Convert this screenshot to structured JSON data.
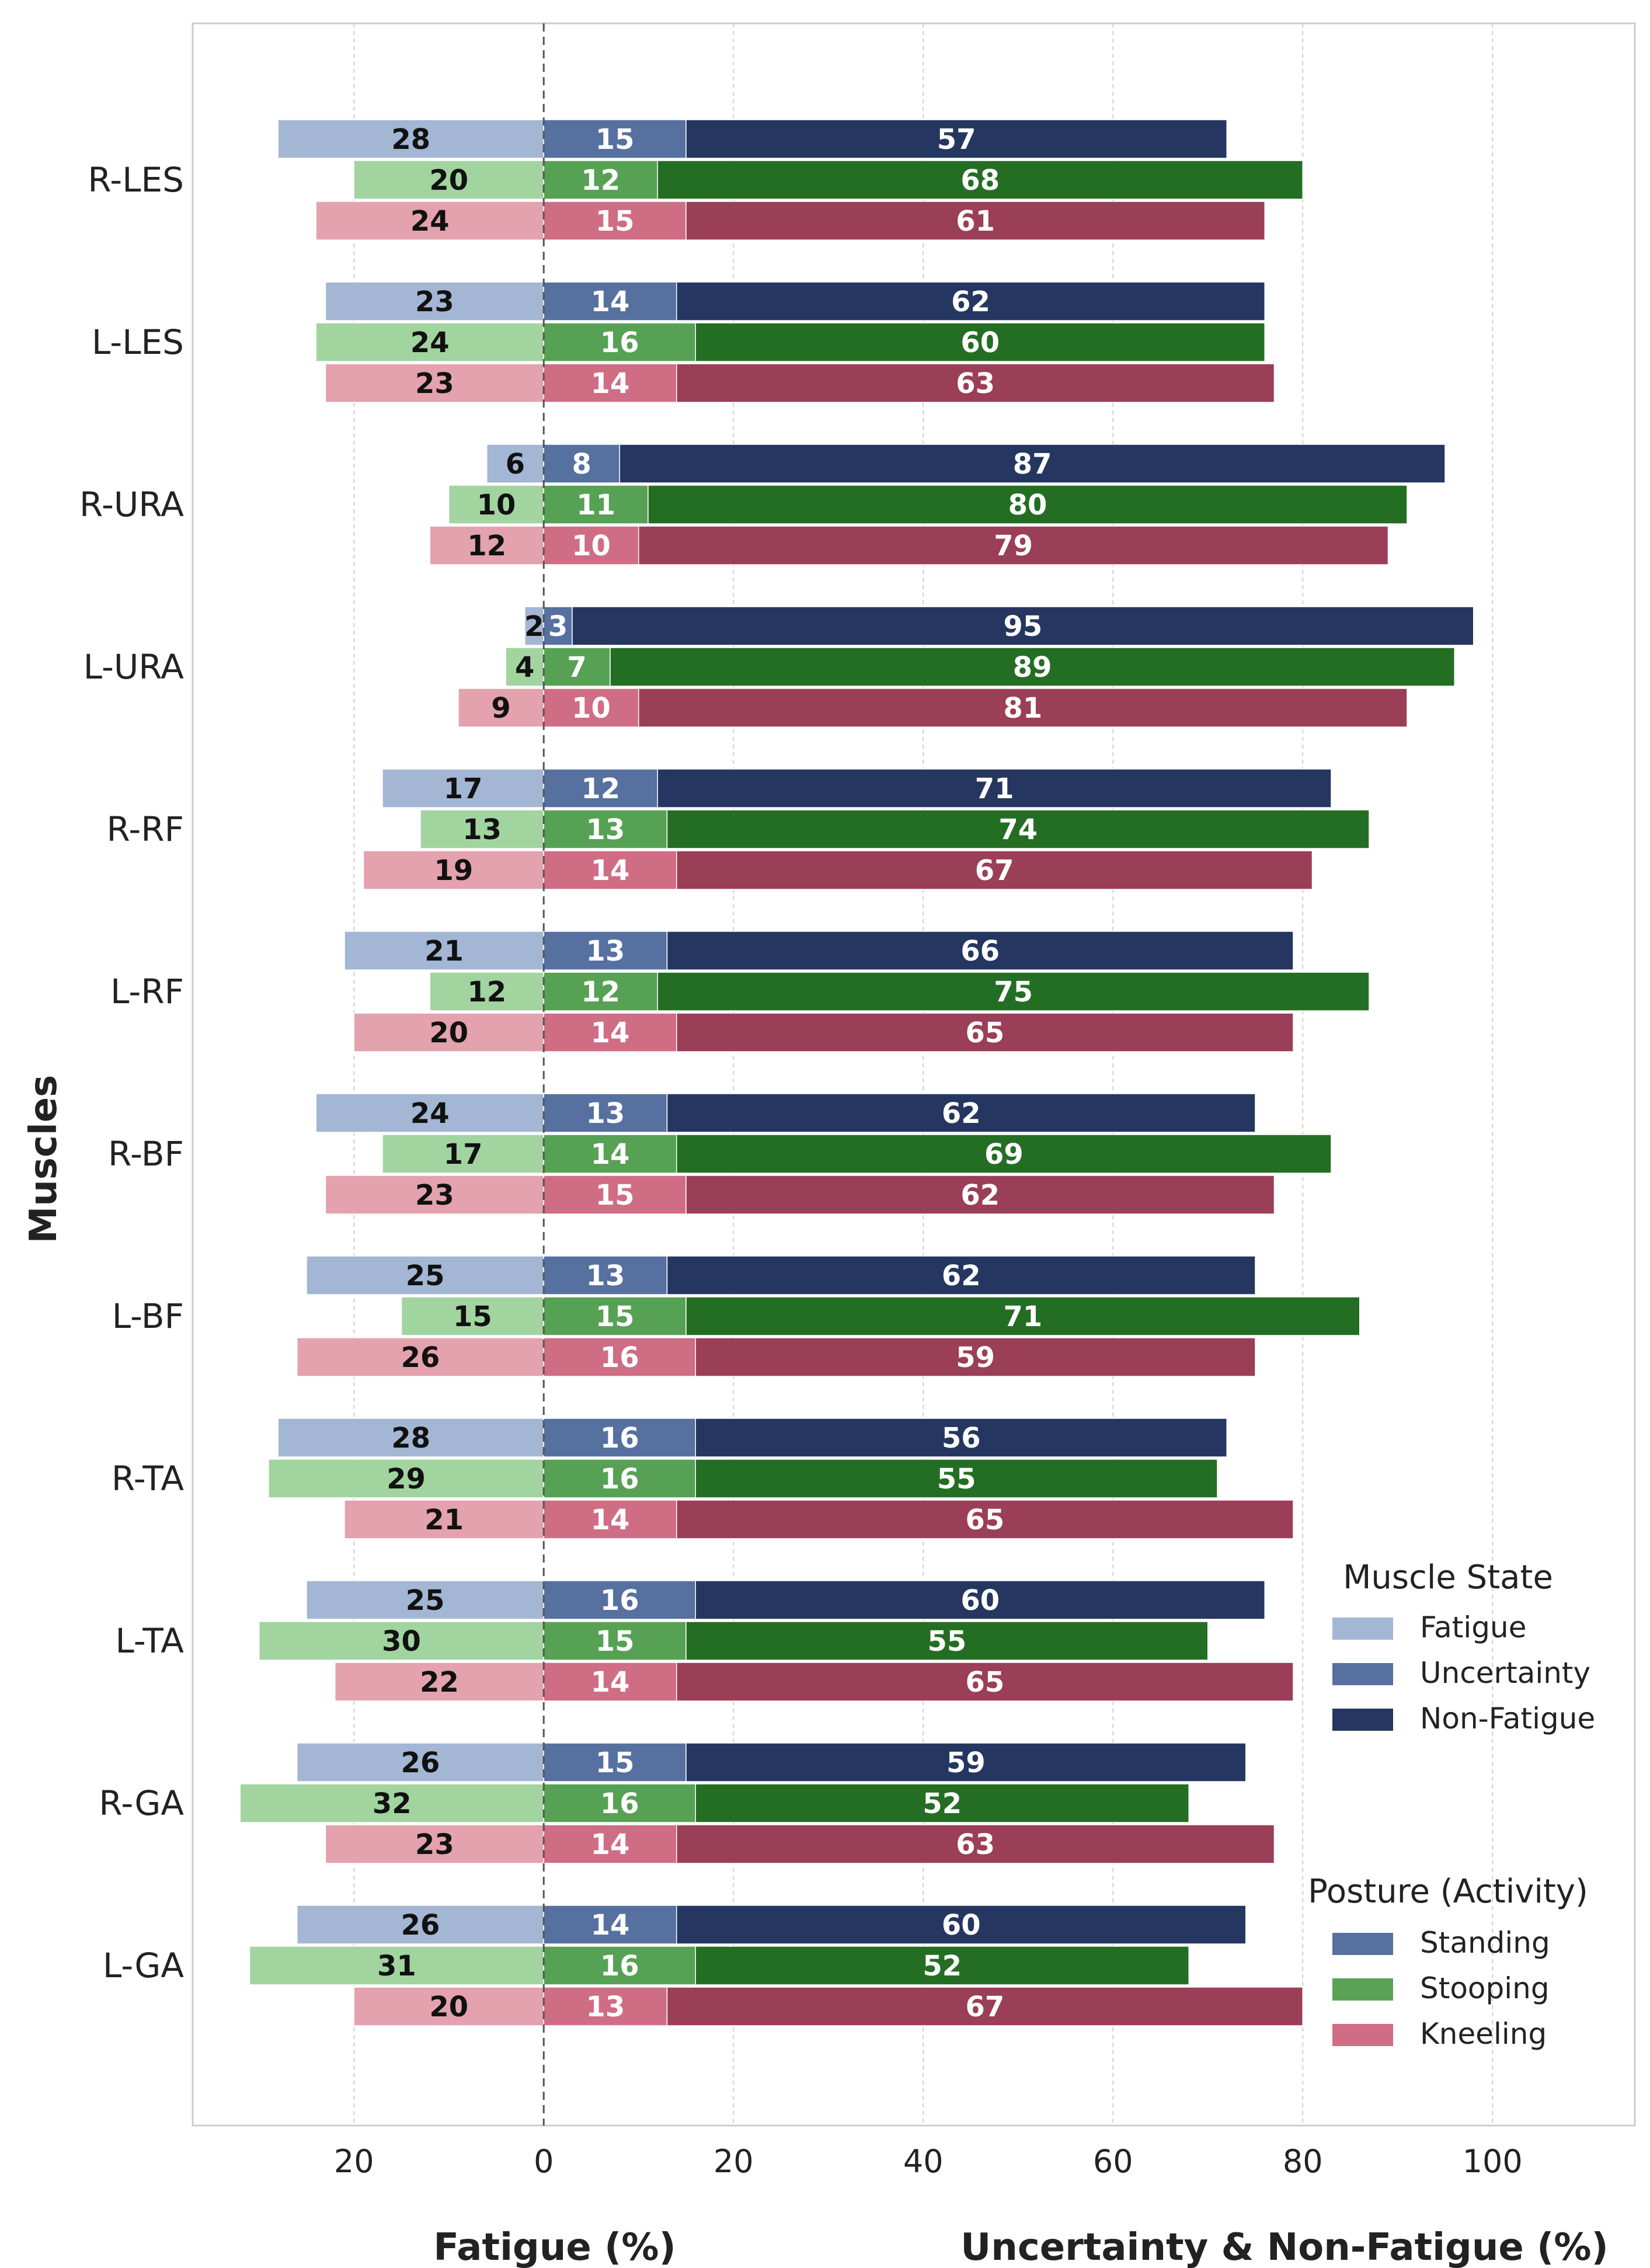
{
  "chart_data": {
    "type": "bar",
    "orientation": "horizontal",
    "stacked": true,
    "diverging": true,
    "categories": [
      "R-LES",
      "L-LES",
      "R-URA",
      "L-URA",
      "R-RF",
      "L-RF",
      "R-BF",
      "L-BF",
      "R-TA",
      "L-TA",
      "R-GA",
      "L-GA"
    ],
    "groups": [
      {
        "name": "Standing",
        "fatigue": [
          28,
          23,
          6,
          2,
          17,
          21,
          24,
          25,
          28,
          25,
          26,
          26
        ],
        "uncertainty": [
          15,
          14,
          8,
          3,
          12,
          13,
          13,
          13,
          16,
          16,
          15,
          14
        ],
        "non_fatigue": [
          57,
          62,
          87,
          95,
          71,
          66,
          62,
          62,
          56,
          60,
          59,
          60
        ]
      },
      {
        "name": "Stooping",
        "fatigue": [
          20,
          24,
          10,
          4,
          13,
          12,
          17,
          15,
          29,
          30,
          32,
          31
        ],
        "uncertainty": [
          12,
          16,
          11,
          7,
          13,
          12,
          14,
          15,
          16,
          15,
          16,
          16
        ],
        "non_fatigue": [
          68,
          60,
          80,
          89,
          74,
          75,
          69,
          71,
          55,
          55,
          52,
          52
        ]
      },
      {
        "name": "Kneeling",
        "fatigue": [
          24,
          23,
          12,
          9,
          19,
          20,
          23,
          26,
          21,
          22,
          23,
          20
        ],
        "uncertainty": [
          15,
          14,
          10,
          10,
          14,
          14,
          15,
          16,
          14,
          14,
          14,
          13
        ],
        "non_fatigue": [
          61,
          63,
          79,
          81,
          67,
          65,
          62,
          59,
          65,
          65,
          63,
          67
        ]
      }
    ],
    "x_ticks": [
      {
        "value": -20,
        "label": "20"
      },
      {
        "value": 0,
        "label": "0"
      },
      {
        "value": 20,
        "label": "20"
      },
      {
        "value": 40,
        "label": "40"
      },
      {
        "value": 60,
        "label": "60"
      },
      {
        "value": 80,
        "label": "80"
      },
      {
        "value": 100,
        "label": "100"
      }
    ],
    "xlim": [
      -37,
      115
    ],
    "ylabel": "Muscles",
    "xlabel_left": "Fatigue (%)",
    "xlabel_right": "Uncertainty & Non-Fatigue (%)",
    "grid": true,
    "legend_state": {
      "title": "Muscle State",
      "items": [
        "Fatigue",
        "Uncertainty",
        "Non-Fatigue"
      ],
      "colors": [
        "#a3b6d4",
        "#5670a0",
        "#253760"
      ]
    },
    "legend_posture": {
      "title": "Posture (Activity)",
      "items": [
        "Standing",
        "Stooping",
        "Kneeling"
      ],
      "colors": [
        "#5670a0",
        "#5aa356",
        "#cf6d85"
      ]
    },
    "colors": {
      "Standing": {
        "fatigue": "#a3b6d4",
        "uncertainty": "#5670a0",
        "non_fatigue": "#253760"
      },
      "Stooping": {
        "fatigue": "#a2d49f",
        "uncertainty": "#57a155",
        "non_fatigue": "#246e24"
      },
      "Kneeling": {
        "fatigue": "#e3a2ae",
        "uncertainty": "#cf6d85",
        "non_fatigue": "#9b3e58"
      }
    }
  }
}
